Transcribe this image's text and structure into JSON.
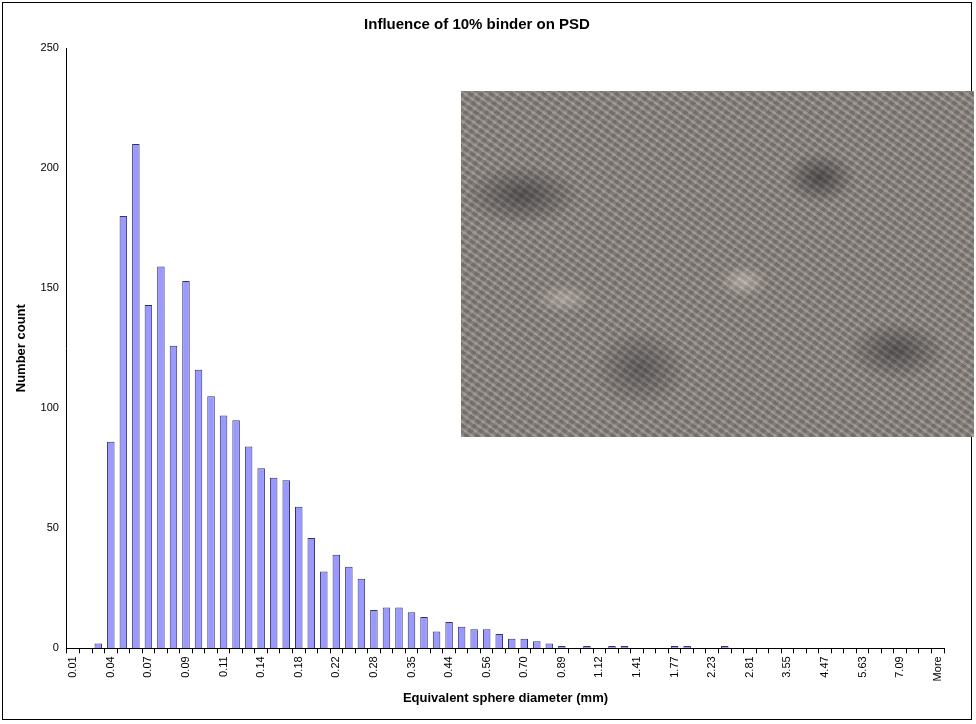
{
  "chart_data": {
    "type": "bar",
    "title": "Influence of 10% binder on PSD",
    "x_label": "Equivalent sphere diameter (mm)",
    "y_label": "Number count",
    "categories": [
      "0.01",
      null,
      null,
      "0.04",
      null,
      null,
      "0.07",
      null,
      null,
      "0.09",
      null,
      null,
      "0.11",
      null,
      null,
      "0.14",
      null,
      null,
      "0.18",
      null,
      null,
      "0.22",
      null,
      null,
      "0.28",
      null,
      null,
      "0.35",
      null,
      null,
      "0.44",
      null,
      null,
      "0.56",
      null,
      null,
      "0.70",
      null,
      null,
      "0.89",
      null,
      null,
      "1.12",
      null,
      null,
      "1.41",
      null,
      null,
      "1.77",
      null,
      null,
      "2.23",
      null,
      null,
      "2.81",
      null,
      null,
      "3.55",
      null,
      null,
      "4.47",
      null,
      null,
      "5.63",
      null,
      null,
      "7.09",
      null,
      null,
      "More"
    ],
    "values": [
      0,
      0,
      2,
      86,
      180,
      210,
      143,
      159,
      126,
      153,
      116,
      105,
      97,
      95,
      84,
      75,
      71,
      70,
      59,
      46,
      32,
      39,
      34,
      29,
      16,
      17,
      17,
      15,
      13,
      7,
      11,
      9,
      8,
      8,
      6,
      4,
      4,
      3,
      2,
      1,
      0,
      1,
      0,
      1,
      1,
      0,
      0,
      0,
      1,
      1,
      0,
      0,
      1,
      0,
      0,
      0,
      0,
      0,
      0,
      0,
      0,
      0,
      0,
      0,
      0,
      0,
      0,
      0,
      0,
      0
    ],
    "color": "#9999ff",
    "ylim": [
      0,
      250
    ],
    "yticks": [
      0,
      50,
      100,
      150,
      200,
      250
    ],
    "grid": false
  }
}
